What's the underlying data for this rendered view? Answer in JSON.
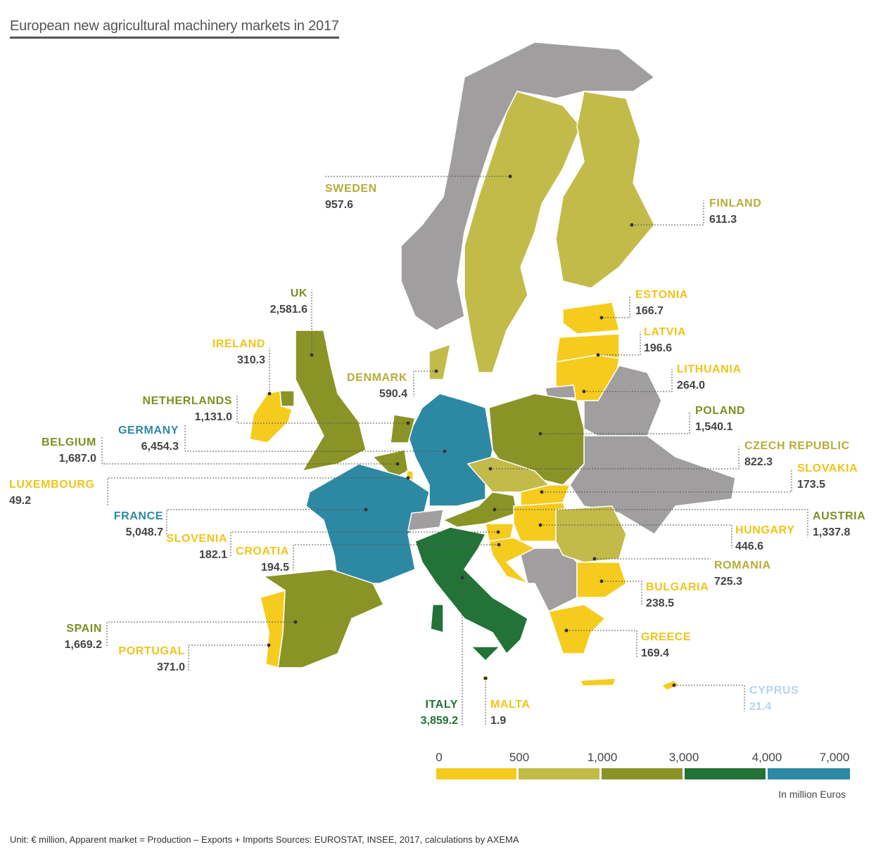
{
  "title": "European new agricultural machinery markets in 2017",
  "legend": {
    "ticks": [
      "0",
      "500",
      "1,000",
      "3,000",
      "4,000",
      "7,000"
    ],
    "colors": [
      "#f5cc1e",
      "#c2bb4a",
      "#8a9426",
      "#237238",
      "#2d89a3"
    ],
    "unit": "In million Euros"
  },
  "no_data_color": "#a09e9f",
  "countries": [
    {
      "name": "SWEDEN",
      "value": "957.6",
      "tier": 1
    },
    {
      "name": "FINLAND",
      "value": "611.3",
      "tier": 1
    },
    {
      "name": "ESTONIA",
      "value": "166.7",
      "tier": 0
    },
    {
      "name": "LATVIA",
      "value": "196.6",
      "tier": 0
    },
    {
      "name": "LITHUANIA",
      "value": "264.0",
      "tier": 0
    },
    {
      "name": "POLAND",
      "value": "1,540.1",
      "tier": 2
    },
    {
      "name": "CZECH REPUBLIC",
      "value": "822.3",
      "tier": 1
    },
    {
      "name": "SLOVAKIA",
      "value": "173.5",
      "tier": 0
    },
    {
      "name": "AUSTRIA",
      "value": "1,337.8",
      "tier": 2
    },
    {
      "name": "HUNGARY",
      "value": "446.6",
      "tier": 0
    },
    {
      "name": "ROMANIA",
      "value": "725.3",
      "tier": 1
    },
    {
      "name": "BULGARIA",
      "value": "238.5",
      "tier": 0
    },
    {
      "name": "GREECE",
      "value": "169.4",
      "tier": 0
    },
    {
      "name": "CYPRUS",
      "value": "21.4",
      "tier": 0
    },
    {
      "name": "MALTA",
      "value": "1.9",
      "tier": 0
    },
    {
      "name": "ITALY",
      "value": "3,859.2",
      "tier": 3
    },
    {
      "name": "PORTUGAL",
      "value": "371.0",
      "tier": 0
    },
    {
      "name": "SPAIN",
      "value": "1,669.2",
      "tier": 2
    },
    {
      "name": "CROATIA",
      "value": "194.5",
      "tier": 0
    },
    {
      "name": "SLOVENIA",
      "value": "182.1",
      "tier": 0
    },
    {
      "name": "FRANCE",
      "value": "5,048.7",
      "tier": 4
    },
    {
      "name": "LUXEMBOURG",
      "value": "49.2",
      "tier": 0
    },
    {
      "name": "BELGIUM",
      "value": "1,687.0",
      "tier": 2
    },
    {
      "name": "GERMANY",
      "value": "6,454.3",
      "tier": 4
    },
    {
      "name": "NETHERLANDS",
      "value": "1,131.0",
      "tier": 2
    },
    {
      "name": "IRELAND",
      "value": "310.3",
      "tier": 0
    },
    {
      "name": "UK",
      "value": "2,581.6",
      "tier": 2
    },
    {
      "name": "DENMARK",
      "value": "590.4",
      "tier": 1
    }
  ],
  "footnote": "Unit: € million, Apparent market = Production – Exports + Imports   Sources: EUROSTAT, INSEE, 2017, calculations by AXEMA"
}
